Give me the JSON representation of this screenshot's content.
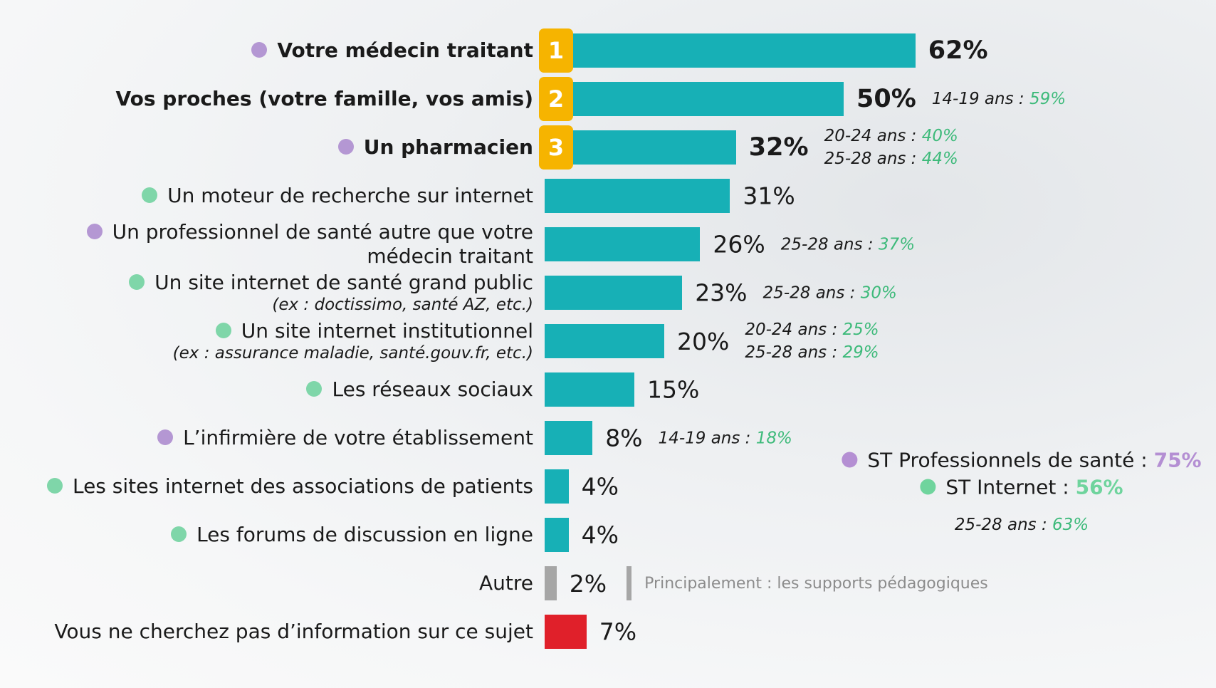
{
  "chart_data": {
    "type": "bar",
    "orientation": "horizontal",
    "categories": [
      "Votre médecin traitant",
      "Vos proches (votre famille, vos amis)",
      "Un pharmacien",
      "Un moteur de recherche sur internet",
      "Un professionnel de santé autre que votre\nmédecin traitant",
      "Un site internet de santé grand public",
      "Un site internet institutionnel",
      "Les réseaux sociaux",
      "L’infirmière de votre établissement",
      "Les sites internet des associations de patients",
      "Les forums de discussion en ligne",
      "Autre",
      "Vous ne cherchez pas d’information sur ce sujet"
    ],
    "sublabels": [
      null,
      null,
      null,
      null,
      null,
      "(ex : doctissimo, santé AZ, etc.)",
      "(ex : assurance maladie, santé.gouv.fr, etc.)",
      null,
      null,
      null,
      null,
      null,
      null
    ],
    "ranks": [
      1,
      2,
      3,
      null,
      null,
      null,
      null,
      null,
      null,
      null,
      null,
      null,
      null
    ],
    "dot_colors": [
      "#b497d3",
      null,
      "#b497d3",
      "#7fd6a9",
      "#b497d3",
      "#7fd6a9",
      "#7fd6a9",
      "#7fd6a9",
      "#b497d3",
      "#7fd6a9",
      "#7fd6a9",
      null,
      null
    ],
    "values": [
      62,
      50,
      32,
      31,
      26,
      23,
      20,
      15,
      8,
      4,
      4,
      2,
      7
    ],
    "value_labels": [
      "62%",
      "50%",
      "32%",
      "31%",
      "26%",
      "23%",
      "20%",
      "15%",
      "8%",
      "4%",
      "4%",
      "2%",
      "7%"
    ],
    "colors": [
      "#17b0b6",
      "#17b0b6",
      "#17b0b6",
      "#17b0b6",
      "#17b0b6",
      "#17b0b6",
      "#17b0b6",
      "#17b0b6",
      "#17b0b6",
      "#17b0b6",
      "#17b0b6",
      "#a6a6a6",
      "#e0202a"
    ],
    "notes": [
      null,
      [
        {
          "label": "14-19 ans :",
          "value": "59%"
        }
      ],
      [
        {
          "label": "20-24 ans :",
          "value": "40%"
        },
        {
          "label": "25-28 ans :",
          "value": "44%"
        }
      ],
      null,
      [
        {
          "label": "25-28 ans :",
          "value": "37%"
        }
      ],
      [
        {
          "label": "25-28 ans :",
          "value": "30%"
        }
      ],
      [
        {
          "label": "20-24 ans :",
          "value": "25%"
        },
        {
          "label": "25-28 ans :",
          "value": "29%"
        }
      ],
      null,
      [
        {
          "label": "14-19 ans :",
          "value": "18%"
        }
      ],
      null,
      null,
      "Principalement : les supports pédagogiques",
      null
    ],
    "summary": [
      {
        "label": "ST Professionnels de santé :",
        "value": "75%",
        "color": "#b48fd3"
      },
      {
        "label": "ST Internet :",
        "value": "56%",
        "color": "#6fd49d"
      }
    ],
    "summary_note": {
      "label": "25-28 ans :",
      "value": "63%"
    }
  }
}
